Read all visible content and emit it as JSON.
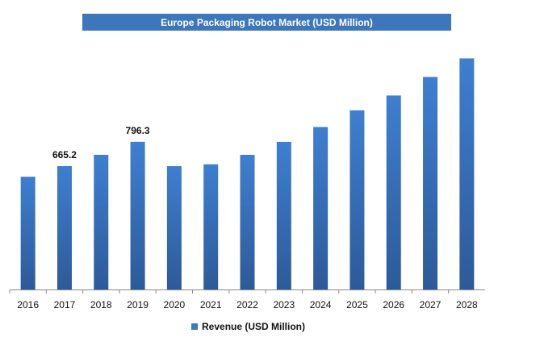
{
  "chart_data": {
    "type": "bar",
    "title": "Europe Packaging Robot Market (USD Million)",
    "categories": [
      "2016",
      "2017",
      "2018",
      "2019",
      "2020",
      "2021",
      "2022",
      "2023",
      "2024",
      "2025",
      "2026",
      "2027",
      "2028"
    ],
    "series": [
      {
        "name": "Revenue (USD Million)",
        "values": [
          608,
          665.2,
          726,
          796.3,
          665,
          675,
          726,
          796,
          876,
          966,
          1046,
          1146,
          1246
        ],
        "color": "#3e78c2"
      }
    ],
    "data_labels": [
      {
        "index": 1,
        "text": "665.2"
      },
      {
        "index": 3,
        "text": "796.3"
      }
    ],
    "ylim": [
      0,
      1300
    ],
    "grid": false,
    "legend": "bottom-center"
  },
  "colors": {
    "title_bar": "#3e76bb",
    "bar_top": "#3e7fd0",
    "bar_bottom": "#2d5a99",
    "axis": "#888888"
  }
}
